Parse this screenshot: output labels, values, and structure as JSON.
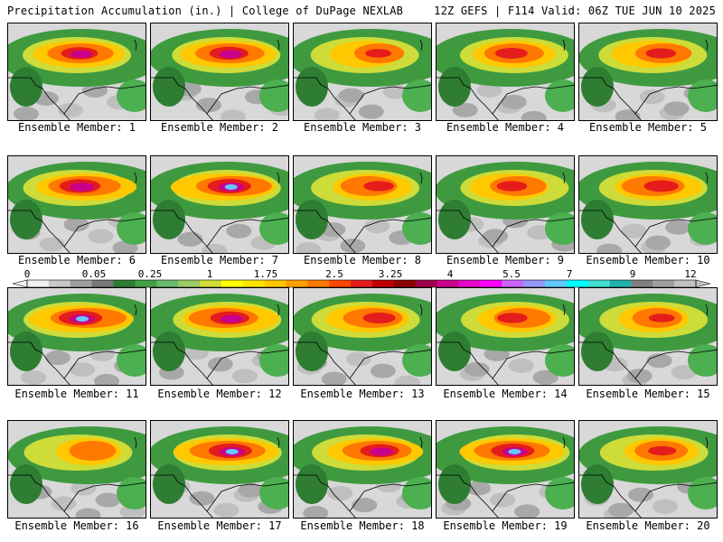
{
  "header": {
    "title": "Precipitation Accumulation (in.) | College of DuPage NEXLAB",
    "valid": "12Z GEFS | F114 Valid: 06Z TUE JUN 10 2025"
  },
  "colorbar": {
    "labels": [
      "0",
      "0.05",
      "0.25",
      "1",
      "1.75",
      "2.5",
      "3.25",
      "4",
      "5.5",
      "7",
      "9",
      "12"
    ],
    "colors": [
      "#f0f0f0",
      "#c8c8c8",
      "#a0a0a0",
      "#787878",
      "#2e7d32",
      "#43a047",
      "#66bb6a",
      "#9ccc65",
      "#cddc39",
      "#ffff00",
      "#ffe600",
      "#ffc800",
      "#ffa000",
      "#ff7800",
      "#ff4500",
      "#e51c1c",
      "#c00000",
      "#8b0000",
      "#a0004a",
      "#c8008c",
      "#e600c8",
      "#ff00ff",
      "#c864ff",
      "#9696ff",
      "#64c8ff",
      "#00ffff",
      "#40e0d0",
      "#20b2aa",
      "#808080",
      "#a0a0a0",
      "#c0c0c0"
    ]
  },
  "members": [
    {
      "caption": "Ensemble Member: 1",
      "intensity": 0.85
    },
    {
      "caption": "Ensemble Member: 2",
      "intensity": 0.9
    },
    {
      "caption": "Ensemble Member: 3",
      "intensity": 0.6
    },
    {
      "caption": "Ensemble Member: 4",
      "intensity": 0.75
    },
    {
      "caption": "Ensemble Member: 5",
      "intensity": 0.7
    },
    {
      "caption": "Ensemble Member: 6",
      "intensity": 0.95
    },
    {
      "caption": "Ensemble Member: 7",
      "intensity": 1.0
    },
    {
      "caption": "Ensemble Member: 8",
      "intensity": 0.7
    },
    {
      "caption": "Ensemble Member: 9",
      "intensity": 0.7
    },
    {
      "caption": "Ensemble Member: 10",
      "intensity": 0.8
    },
    {
      "caption": "Ensemble Member: 11",
      "intensity": 1.0
    },
    {
      "caption": "Ensemble Member: 12",
      "intensity": 0.9
    },
    {
      "caption": "Ensemble Member: 13",
      "intensity": 0.75
    },
    {
      "caption": "Ensemble Member: 14",
      "intensity": 0.7
    },
    {
      "caption": "Ensemble Member: 15",
      "intensity": 0.6
    },
    {
      "caption": "Ensemble Member: 16",
      "intensity": 0.55
    },
    {
      "caption": "Ensemble Member: 17",
      "intensity": 1.0
    },
    {
      "caption": "Ensemble Member: 18",
      "intensity": 0.9
    },
    {
      "caption": "Ensemble Member: 19",
      "intensity": 1.0
    },
    {
      "caption": "Ensemble Member: 20",
      "intensity": 0.65
    }
  ]
}
